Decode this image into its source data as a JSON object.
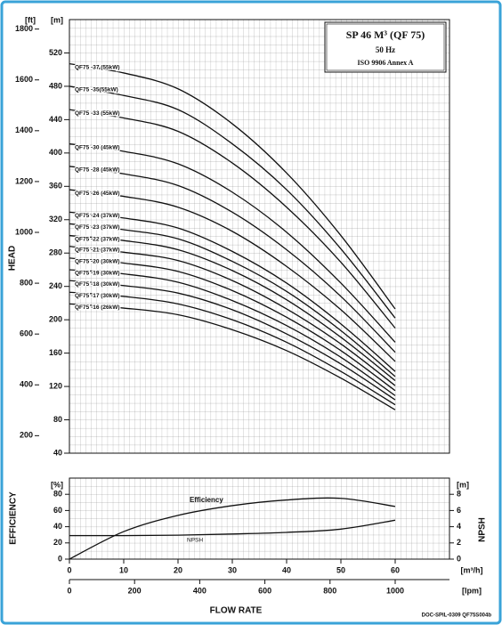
{
  "chart_data": [
    {
      "type": "line",
      "title": "SP 46 M³ (QF 75)",
      "subtitle": "50 Hz",
      "annotation": "ISO 9906 Annex A",
      "ylabel": "HEAD",
      "yunit": "[m]",
      "y2unit": "[ft]",
      "color": "#111111",
      "x": [
        0,
        10,
        20,
        30,
        40,
        50,
        60
      ],
      "xlim": [
        0,
        70
      ],
      "ylim": [
        40,
        560
      ],
      "yticks": [
        40,
        80,
        120,
        160,
        200,
        240,
        280,
        320,
        360,
        400,
        440,
        480,
        520
      ],
      "y2lim": [
        131.2,
        1837.3
      ],
      "y2ticks": [
        200,
        400,
        600,
        800,
        1000,
        1200,
        1400,
        1600,
        1800
      ],
      "series": [
        {
          "name": "QF75 -37 (55kW)",
          "values": [
            507,
            496,
            477,
            435,
            376,
            301,
            213
          ]
        },
        {
          "name": "QF75 -35(55kW)",
          "values": [
            480,
            469,
            452,
            411,
            356,
            285,
            202
          ]
        },
        {
          "name": "QF75 -33 (55kW)",
          "values": [
            452,
            442,
            426,
            388,
            335,
            269,
            190
          ]
        },
        {
          "name": "QF75 -30 (45kW)",
          "values": [
            411,
            402,
            387,
            353,
            305,
            244,
            173
          ]
        },
        {
          "name": "QF75 -28 (45kW)",
          "values": [
            384,
            375,
            361,
            329,
            284,
            228,
            161
          ]
        },
        {
          "name": "QF75 -26 (45kW)",
          "values": [
            356,
            348,
            335,
            306,
            264,
            212,
            150
          ]
        },
        {
          "name": "QF75 -24 (37kW)",
          "values": [
            329,
            322,
            310,
            282,
            244,
            195,
            138
          ]
        },
        {
          "name": "QF75 -23 (37kW)",
          "values": [
            315,
            308,
            297,
            270,
            234,
            187,
            132
          ]
        },
        {
          "name": "QF75 -22 (37kW)",
          "values": [
            301,
            295,
            284,
            259,
            224,
            179,
            127
          ]
        },
        {
          "name": "QF75 -21 (37kW)",
          "values": [
            288,
            281,
            271,
            247,
            213,
            171,
            121
          ]
        },
        {
          "name": "QF75 -20 (30kW)",
          "values": [
            274,
            268,
            258,
            235,
            203,
            163,
            115
          ]
        },
        {
          "name": "QF75 -19 (30kW)",
          "values": [
            260,
            255,
            245,
            223,
            193,
            155,
            109
          ]
        },
        {
          "name": "QF75 -18 (30kW)",
          "values": [
            247,
            241,
            232,
            212,
            183,
            147,
            104
          ]
        },
        {
          "name": "QF75 -17 (30kW)",
          "values": [
            233,
            228,
            219,
            200,
            173,
            138,
            98
          ]
        },
        {
          "name": "QF75 -16 (26kW)",
          "values": [
            219,
            214,
            206,
            188,
            163,
            130,
            92
          ]
        }
      ]
    },
    {
      "type": "line",
      "ylabel": "EFFICIENCY",
      "yunit": "[%]",
      "y2label": "NPSH",
      "y2unit": "[m]",
      "xlabel": "FLOW RATE",
      "xunit": "[m³/h]",
      "x2unit": "[lpm]",
      "color": "#111111",
      "x": [
        0,
        10,
        20,
        30,
        40,
        50,
        60
      ],
      "xlim": [
        0,
        70
      ],
      "xticks": [
        0,
        10,
        20,
        30,
        40,
        50,
        60
      ],
      "x2lim": [
        0,
        1166.7
      ],
      "x2ticks": [
        0,
        200,
        400,
        600,
        800,
        1000
      ],
      "ylim": [
        0,
        100
      ],
      "yticks": [
        0,
        20,
        40,
        60,
        80
      ],
      "y2lim": [
        0,
        10
      ],
      "y2ticks": [
        0,
        2,
        4,
        6,
        8
      ],
      "series": [
        {
          "name": "Efficiency",
          "values": [
            0,
            34,
            54,
            66,
            73,
            75,
            65
          ]
        },
        {
          "name": "NPSH",
          "axis": "y2",
          "values": [
            2.9,
            2.9,
            2.95,
            3.1,
            3.3,
            3.7,
            4.8
          ]
        }
      ]
    }
  ],
  "doc_code": "DOC-SPIL-0309 QF75S004b"
}
